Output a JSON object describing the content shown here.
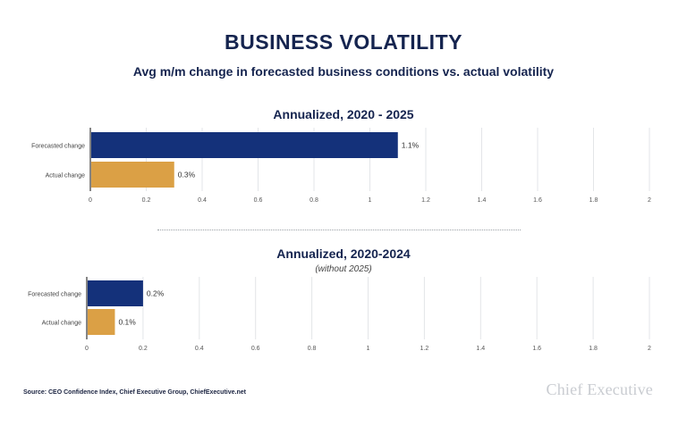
{
  "title": "BUSINESS VOLATILITY",
  "subtitle": "Avg m/m change in forecasted business conditions vs. actual volatility",
  "colors": {
    "forecast": "#14317a",
    "actual": "#dba045",
    "grid": "#e3e5e8",
    "axis": "#333333"
  },
  "source": "Source: CEO Confidence Index, Chief Executive Group, ChiefExecutive.net",
  "logo": "Chief Executive",
  "chart_data": [
    {
      "type": "bar",
      "orientation": "horizontal",
      "title": "Annualized, 2020 - 2025",
      "note": "",
      "categories": [
        "Forecasted change",
        "Actual change"
      ],
      "values": [
        1.1,
        0.3
      ],
      "labels": [
        "1.1%",
        "0.3%"
      ],
      "xlim": [
        0,
        2
      ],
      "ticks": [
        "0",
        "0.2",
        "0.4",
        "0.6",
        "0.8",
        "1",
        "1.2",
        "1.4",
        "1.6",
        "1.8",
        "2"
      ],
      "grid": true
    },
    {
      "type": "bar",
      "orientation": "horizontal",
      "title": "Annualized, 2020-2024",
      "note": "(without 2025)",
      "categories": [
        "Forecasted change",
        "Actual change"
      ],
      "values": [
        0.2,
        0.1
      ],
      "labels": [
        "0.2%",
        "0.1%"
      ],
      "xlim": [
        0,
        2
      ],
      "ticks": [
        "0",
        "0.2",
        "0.4",
        "0.6",
        "0.8",
        "1",
        "1.2",
        "1.4",
        "1.6",
        "1.8",
        "2"
      ],
      "grid": true
    }
  ]
}
